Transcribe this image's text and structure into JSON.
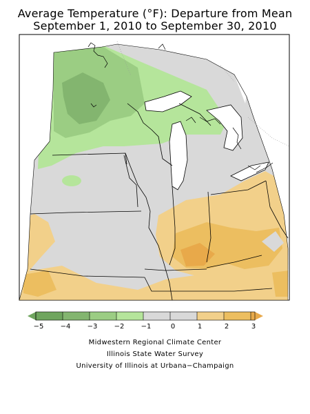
{
  "title": {
    "line1": "Average Temperature (°F): Departure from Mean",
    "line2": "September 1, 2010 to September 30, 2010"
  },
  "legend": {
    "labels": [
      "−5",
      "−4",
      "−3",
      "−2",
      "−1",
      "0",
      "1",
      "2",
      "3"
    ],
    "colors": [
      "#6fa55e",
      "#83b56f",
      "#9bcd83",
      "#b5e59b",
      "#d9d9d9",
      "#d9d9d9",
      "#f2d08a",
      "#ecbe60",
      "#e8a94a"
    ]
  },
  "map": {
    "colors": {
      "border": "#000000",
      "neutral": "#d9d9d9",
      "cool_1": "#b5e59b",
      "cool_2": "#9bcd83",
      "cool_3": "#83b56f",
      "warm_1": "#f2d08a",
      "warm_2": "#ecbe60",
      "warm_3": "#e8a94a"
    }
  },
  "credits": {
    "line1": "Midwestern Regional Climate Center",
    "line2": "Illinois State Water Survey",
    "line3": "University of Illinois at Urbana−Champaign"
  }
}
